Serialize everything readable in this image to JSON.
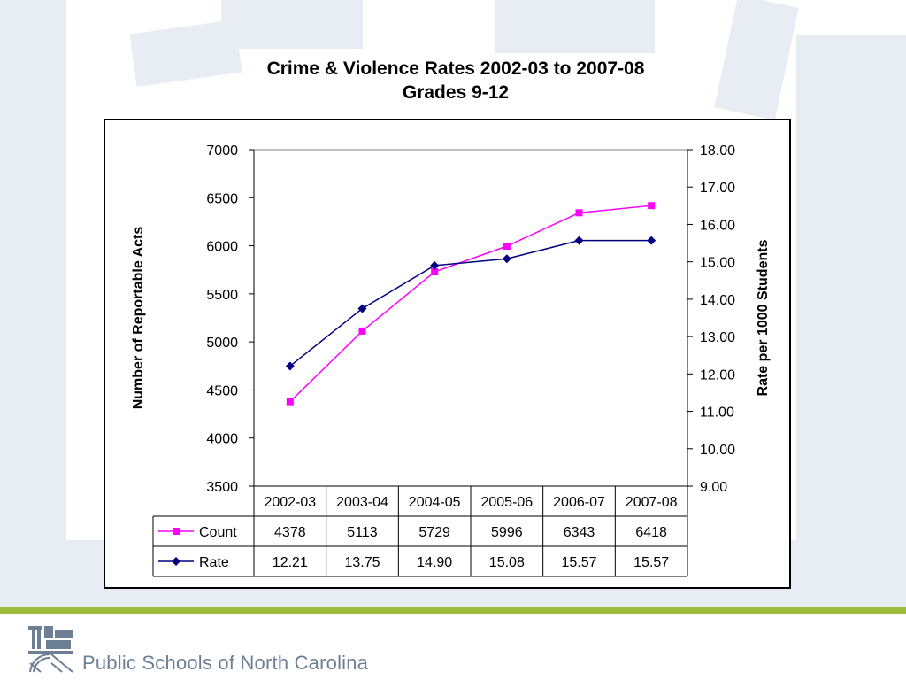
{
  "title_line1": "Crime & Violence Rates 2002-03 to 2007-08",
  "title_line2": "Grades 9-12",
  "footer": {
    "org_name": "Public Schools of North Carolina",
    "logo_icon": "nc-dpi-logo-icon"
  },
  "colors": {
    "count_series": "#ff00ff",
    "rate_series": "#000080",
    "green_rule": "#9bbb3c",
    "footer_text": "#6d7f95",
    "background_deco": "#e6ebf2"
  },
  "chart_data": {
    "type": "line",
    "title": "Crime & Violence Rates 2002-03 to 2007-08 Grades 9-12",
    "categories": [
      "2002-03",
      "2003-04",
      "2004-05",
      "2005-06",
      "2006-07",
      "2007-08"
    ],
    "ylabel": "Number of Reportable Acts",
    "y2label": "Rate per 1000 Students",
    "ylim": [
      3500,
      7000
    ],
    "y2lim": [
      9,
      18
    ],
    "yticks": [
      "3500",
      "4000",
      "4500",
      "5000",
      "5500",
      "6000",
      "6500",
      "7000"
    ],
    "y2ticks": [
      "9.00",
      "10.00",
      "11.00",
      "12.00",
      "13.00",
      "14.00",
      "15.00",
      "16.00",
      "17.00",
      "18.00"
    ],
    "grid": "top line only",
    "legend": "data table below chart",
    "series": [
      {
        "name": "Count",
        "axis": "left",
        "color": "#ff00ff",
        "marker": "square",
        "values": [
          4378,
          5113,
          5729,
          5996,
          6343,
          6418
        ],
        "labels": [
          "4378",
          "5113",
          "5729",
          "5996",
          "6343",
          "6418"
        ]
      },
      {
        "name": "Rate",
        "axis": "right",
        "color": "#000080",
        "marker": "diamond",
        "values": [
          12.21,
          13.75,
          14.9,
          15.08,
          15.57,
          15.57
        ],
        "labels": [
          "12.21",
          "13.75",
          "14.90",
          "15.08",
          "15.57",
          "15.57"
        ]
      }
    ]
  }
}
